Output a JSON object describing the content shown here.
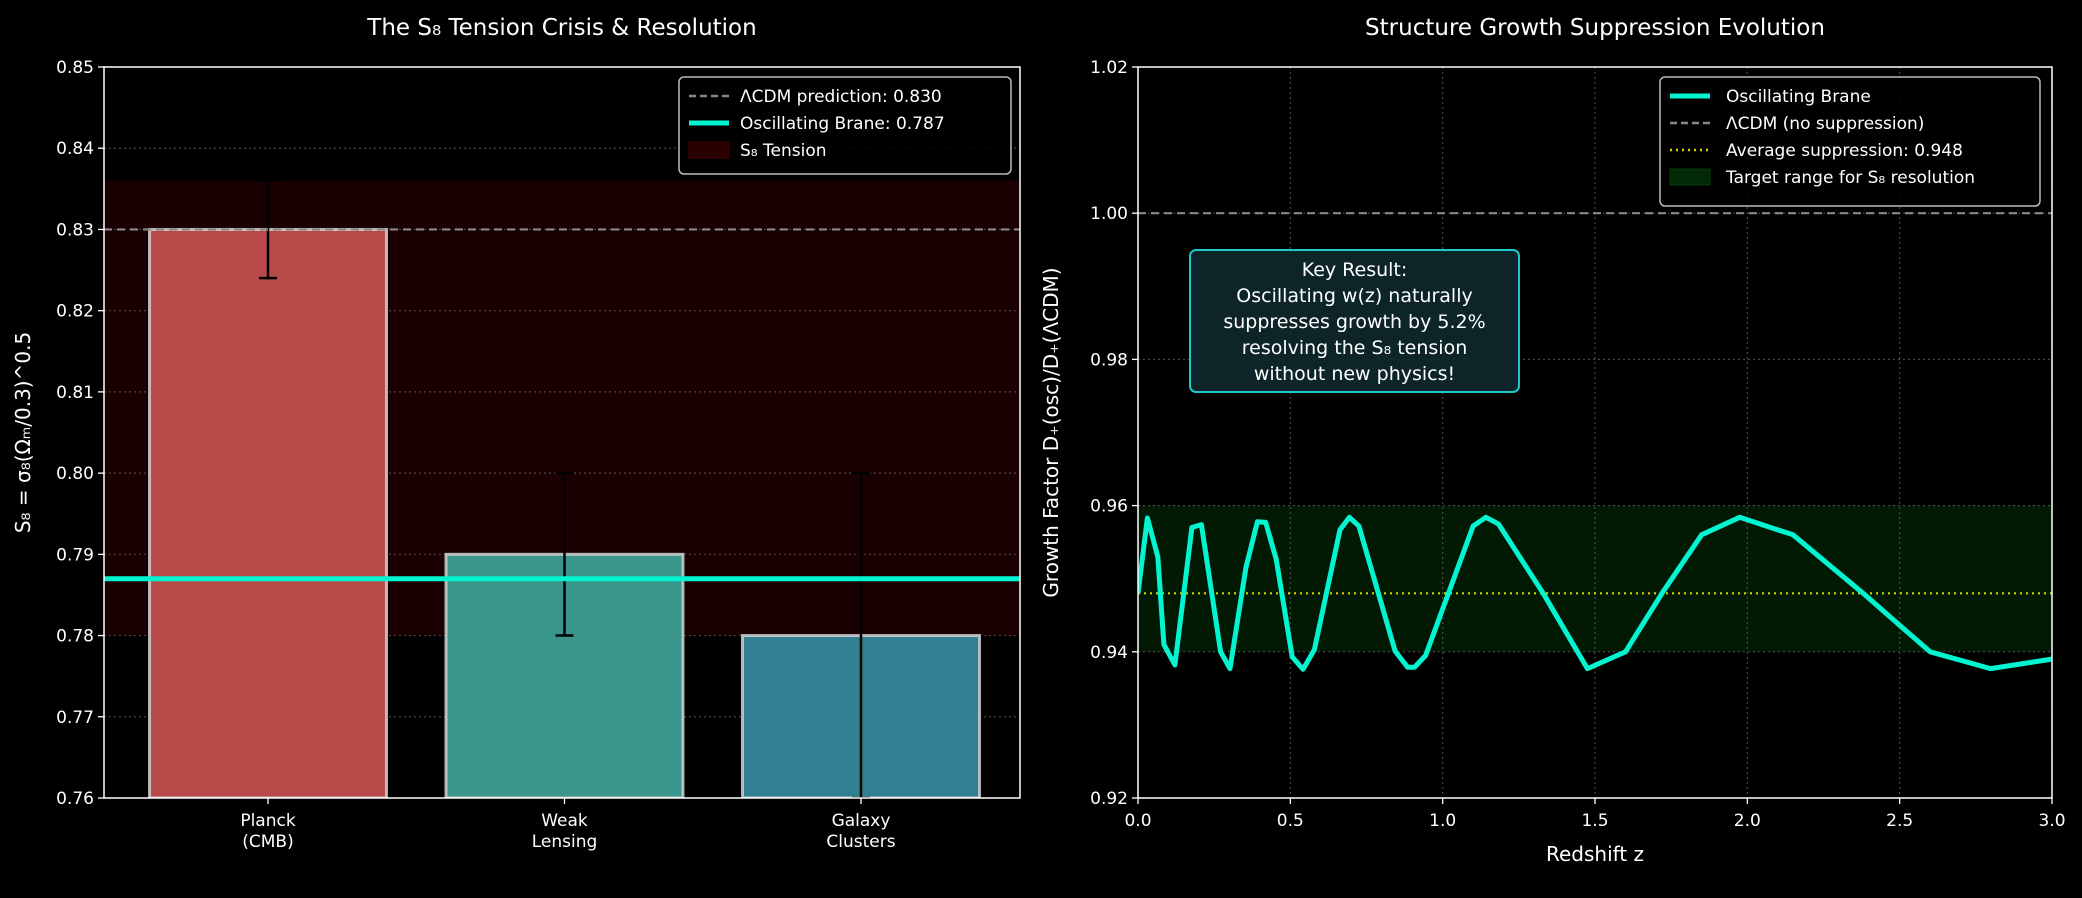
{
  "chart_data": [
    {
      "type": "bar",
      "title": "The S₈ Tension Crisis & Resolution",
      "ylabel": "S₈ = σ₈(Ωₘ/0.3)^0.5",
      "xlabel": "",
      "ylim": [
        0.76,
        0.85
      ],
      "yticks": [
        "0.76",
        "0.77",
        "0.78",
        "0.79",
        "0.80",
        "0.81",
        "0.82",
        "0.83",
        "0.84",
        "0.85"
      ],
      "grid": true,
      "categories": [
        "Planck\n(CMB)",
        "Weak\nLensing",
        "Galaxy\nClusters"
      ],
      "values": [
        0.83,
        0.79,
        0.78
      ],
      "errors": [
        0.006,
        0.01,
        0.02
      ],
      "bar_colors": [
        "#b84a4a",
        "#3a958a",
        "#317f91"
      ],
      "reference_lines": [
        {
          "label": "ΛCDM prediction: 0.830",
          "value": 0.83,
          "style": "dashed",
          "color": "#888888"
        },
        {
          "label": "Oscillating Brane: 0.787",
          "value": 0.787,
          "style": "solid",
          "color": "#00f5d0"
        }
      ],
      "bands": [
        {
          "label": "S₈ Tension",
          "range": [
            0.78,
            0.836
          ],
          "color": "#1a0000"
        }
      ],
      "legend": "top-right"
    },
    {
      "type": "line",
      "title": "Structure Growth Suppression Evolution",
      "xlabel": "Redshift z",
      "ylabel": "Growth Factor D₊(osc)/D₊(ΛCDM)",
      "xlim": [
        0,
        3.0
      ],
      "ylim": [
        0.92,
        1.02
      ],
      "xticks": [
        "0.0",
        "0.5",
        "1.0",
        "1.5",
        "2.0",
        "2.5",
        "3.0"
      ],
      "yticks": [
        "0.92",
        "0.94",
        "0.96",
        "0.98",
        "1.00",
        "1.02"
      ],
      "grid": true,
      "series": [
        {
          "name": "Oscillating Brane",
          "color": "#00f5d0",
          "x": [
            0,
            0.031,
            0.065,
            0.085,
            0.121,
            0.177,
            0.208,
            0.271,
            0.302,
            0.354,
            0.392,
            0.419,
            0.454,
            0.506,
            0.542,
            0.579,
            0.663,
            0.694,
            0.725,
            0.844,
            0.885,
            0.908,
            0.944,
            1.1,
            1.142,
            1.183,
            1.33,
            1.475,
            1.6,
            1.72,
            1.85,
            1.975,
            2.15,
            2.38,
            2.6,
            2.798,
            3.0
          ],
          "y": [
            0.948,
            0.9583,
            0.953,
            0.941,
            0.9382,
            0.957,
            0.9574,
            0.94,
            0.9377,
            0.9515,
            0.9578,
            0.9577,
            0.9526,
            0.9393,
            0.9376,
            0.9403,
            0.9567,
            0.9584,
            0.9572,
            0.9401,
            0.9379,
            0.9379,
            0.9395,
            0.9572,
            0.9584,
            0.9575,
            0.948,
            0.9377,
            0.94,
            0.948,
            0.956,
            0.9584,
            0.956,
            0.948,
            0.94,
            0.9377,
            0.939
          ]
        }
      ],
      "reference_lines": [
        {
          "label": "ΛCDM (no suppression)",
          "value": 1.0,
          "style": "dashed",
          "color": "#888888"
        },
        {
          "label": "Average suppression: 0.948",
          "value": 0.948,
          "style": "dotted",
          "color": "#d4d400"
        }
      ],
      "bands": [
        {
          "label": "Target range for S₈ resolution",
          "range": [
            0.94,
            0.96
          ],
          "color": "#021a04"
        }
      ],
      "legend": "top-right"
    }
  ],
  "annotation": {
    "lines": [
      "Key Result:",
      "Oscillating w(z) naturally",
      "suppresses growth by 5.2%",
      "resolving the S₈ tension",
      "without new physics!"
    ],
    "border_color": "#1ec8c8"
  }
}
